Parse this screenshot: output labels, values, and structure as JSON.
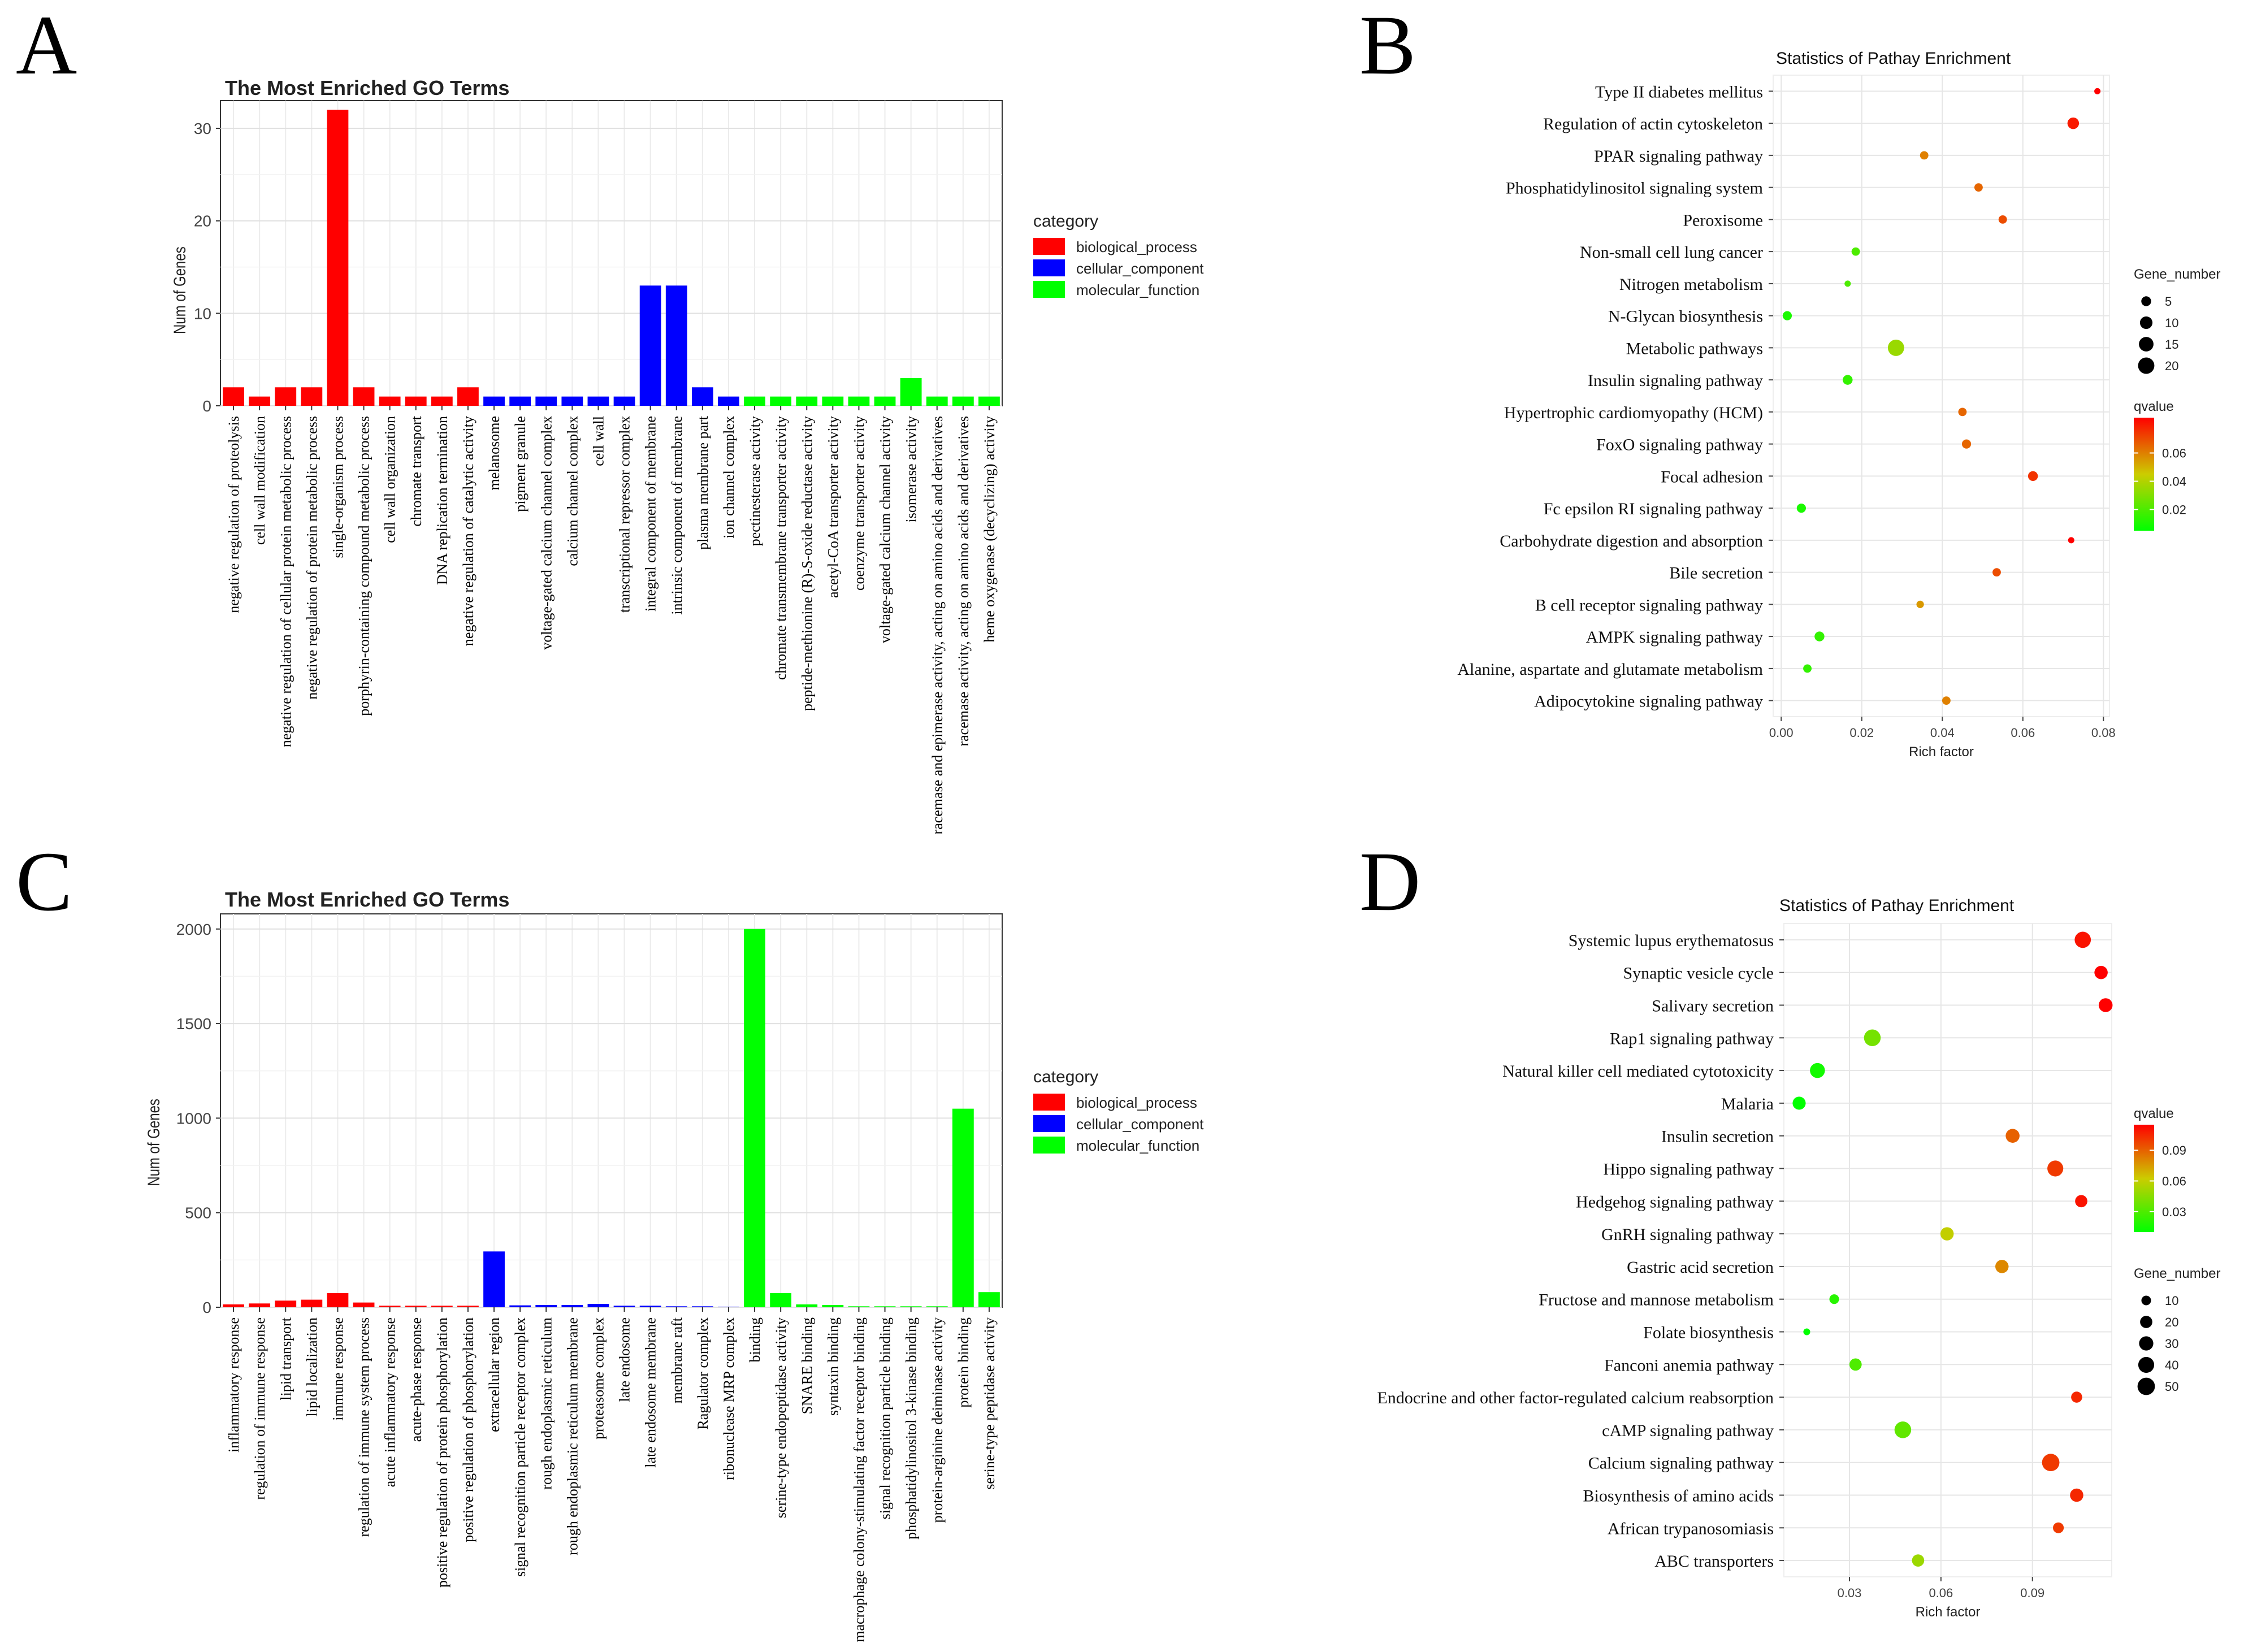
{
  "panels": {
    "A": "A",
    "B": "B",
    "C": "C",
    "D": "D"
  },
  "chart_data": [
    {
      "panel": "A",
      "type": "bar",
      "title": "The Most Enriched GO Terms",
      "xlabel": "",
      "ylabel": "Num of Genes",
      "ylim": [
        0,
        33
      ],
      "yticks": [
        0,
        10,
        20,
        30
      ],
      "grid": true,
      "legend_title": "category",
      "legend_position": "right",
      "legend": [
        {
          "name": "biological_process",
          "color": "#ff0000"
        },
        {
          "name": "cellular_component",
          "color": "#0000ff"
        },
        {
          "name": "molecular_function",
          "color": "#00ff00"
        }
      ],
      "categories": [
        "negative regulation of proteolysis",
        "cell wall modification",
        "negative regulation of cellular protein metabolic process",
        "negative regulation of protein metabolic process",
        "single-organism process",
        "porphyrin-containing compound metabolic process",
        "cell wall organization",
        "chromate transport",
        "DNA replication termination",
        "negative regulation of catalytic activity",
        "melanosome",
        "pigment granule",
        "voltage-gated calcium channel complex",
        "calcium channel complex",
        "cell wall",
        "transcriptional repressor complex",
        "integral component of membrane",
        "intrinsic component of membrane",
        "plasma membrane part",
        "ion channel complex",
        "pectinesterase activity",
        "chromate transmembrane transporter activity",
        "peptide-methionine (R)-S-oxide reductase activity",
        "acetyl-CoA transporter activity",
        "coenzyme transporter activity",
        "voltage-gated calcium channel activity",
        "isomerase activity",
        "racemase and epimerase activity, acting on amino acids and derivatives",
        "racemase activity, acting on amino acids and derivatives",
        "heme oxygenase (decyclizing) activity"
      ],
      "values": [
        2,
        1,
        2,
        2,
        32,
        2,
        1,
        1,
        1,
        2,
        1,
        1,
        1,
        1,
        1,
        1,
        13,
        13,
        2,
        1,
        1,
        1,
        1,
        1,
        1,
        1,
        3,
        1,
        1,
        1
      ],
      "category_of": [
        "biological_process",
        "biological_process",
        "biological_process",
        "biological_process",
        "biological_process",
        "biological_process",
        "biological_process",
        "biological_process",
        "biological_process",
        "biological_process",
        "cellular_component",
        "cellular_component",
        "cellular_component",
        "cellular_component",
        "cellular_component",
        "cellular_component",
        "cellular_component",
        "cellular_component",
        "cellular_component",
        "cellular_component",
        "molecular_function",
        "molecular_function",
        "molecular_function",
        "molecular_function",
        "molecular_function",
        "molecular_function",
        "molecular_function",
        "molecular_function",
        "molecular_function",
        "molecular_function"
      ]
    },
    {
      "panel": "B",
      "type": "scatter",
      "title": "Statistics of Pathay Enrichment",
      "xlabel": "Rich factor",
      "ylabel": "",
      "xlim": [
        -0.002,
        0.0815
      ],
      "xticks": [
        0.0,
        0.02,
        0.04,
        0.06,
        0.08
      ],
      "xtick_labels": [
        "0.00",
        "0.02",
        "0.04",
        "0.06",
        "0.08"
      ],
      "grid": true,
      "size_legend_title": "Gene_number",
      "size_legend": [
        5,
        10,
        15,
        20
      ],
      "size_range": [
        1,
        22
      ],
      "color_legend_title": "qvalue",
      "color_legend_ticks": [
        0.02,
        0.04,
        0.06
      ],
      "color_range": [
        0.005,
        0.085
      ],
      "categories": [
        "Type II diabetes mellitus",
        "Regulation of actin cytoskeleton",
        "PPAR signaling pathway",
        "Phosphatidylinositol signaling system",
        "Peroxisome",
        "Non-small cell lung cancer",
        "Nitrogen metabolism",
        "N-Glycan biosynthesis",
        "Metabolic pathways",
        "Insulin signaling pathway",
        "Hypertrophic cardiomyopathy (HCM)",
        "FoxO signaling pathway",
        "Focal adhesion",
        "Fc epsilon RI signaling pathway",
        "Carbohydrate digestion and absorption",
        "Bile secretion",
        "B cell receptor signaling pathway",
        "AMPK signaling pathway",
        "Alanine, aspartate and glutamate metabolism",
        "Adipocytokine signaling pathway"
      ],
      "x": [
        0.0785,
        0.0725,
        0.0355,
        0.049,
        0.055,
        0.0185,
        0.0165,
        0.0015,
        0.0285,
        0.0165,
        0.045,
        0.046,
        0.0625,
        0.005,
        0.072,
        0.0535,
        0.0345,
        0.0095,
        0.0065,
        0.041
      ],
      "gene_number": [
        1,
        8,
        3,
        3,
        3,
        3,
        1,
        4,
        20,
        5,
        3,
        4,
        5,
        4,
        1,
        3,
        2,
        5,
        3,
        3
      ],
      "qvalue": [
        0.085,
        0.08,
        0.06,
        0.065,
        0.07,
        0.02,
        0.02,
        0.01,
        0.035,
        0.015,
        0.065,
        0.065,
        0.075,
        0.01,
        0.085,
        0.07,
        0.055,
        0.015,
        0.015,
        0.06
      ]
    },
    {
      "panel": "C",
      "type": "bar",
      "title": "The Most Enriched GO Terms",
      "xlabel": "",
      "ylabel": "Num of Genes",
      "ylim": [
        0,
        2080
      ],
      "yticks": [
        0,
        500,
        1000,
        1500,
        2000
      ],
      "grid": true,
      "legend_title": "category",
      "legend_position": "right",
      "legend": [
        {
          "name": "biological_process",
          "color": "#ff0000"
        },
        {
          "name": "cellular_component",
          "color": "#0000ff"
        },
        {
          "name": "molecular_function",
          "color": "#00ff00"
        }
      ],
      "categories": [
        "inflammatory response",
        "regulation of immune response",
        "lipid transport",
        "lipid localization",
        "immune response",
        "regulation of immune system process",
        "acute inflammatory response",
        "acute-phase response",
        "positive regulation of protein phosphorylation",
        "positive regulation of phosphorylation",
        "extracellular region",
        "signal recognition particle receptor complex",
        "rough endoplasmic reticulum",
        "rough endoplasmic reticulum membrane",
        "proteasome complex",
        "late endosome",
        "late endosome membrane",
        "membrane raft",
        "Ragulator complex",
        "ribonuclease MRP complex",
        "binding",
        "serine-type endopeptidase activity",
        "SNARE binding",
        "syntaxin binding",
        "macrophage colony-stimulating factor receptor binding",
        "signal recognition particle binding",
        "phosphatidylinositol 3-kinase binding",
        "protein-arginine deiminase activity",
        "protein binding",
        "serine-type peptidase activity"
      ],
      "values": [
        15,
        20,
        35,
        40,
        75,
        25,
        8,
        8,
        8,
        8,
        295,
        10,
        12,
        12,
        18,
        8,
        8,
        5,
        5,
        3,
        2000,
        75,
        15,
        12,
        5,
        5,
        5,
        5,
        1050,
        80
      ],
      "category_of": [
        "biological_process",
        "biological_process",
        "biological_process",
        "biological_process",
        "biological_process",
        "biological_process",
        "biological_process",
        "biological_process",
        "biological_process",
        "biological_process",
        "cellular_component",
        "cellular_component",
        "cellular_component",
        "cellular_component",
        "cellular_component",
        "cellular_component",
        "cellular_component",
        "cellular_component",
        "cellular_component",
        "cellular_component",
        "molecular_function",
        "molecular_function",
        "molecular_function",
        "molecular_function",
        "molecular_function",
        "molecular_function",
        "molecular_function",
        "molecular_function",
        "molecular_function",
        "molecular_function"
      ]
    },
    {
      "panel": "D",
      "type": "scatter",
      "title": "Statistics of Pathay Enrichment",
      "xlabel": "Rich factor",
      "ylabel": "",
      "xlim": [
        0.0085,
        0.116
      ],
      "xticks": [
        0.03,
        0.06,
        0.09
      ],
      "xtick_labels": [
        "0.03",
        "0.06",
        "0.09"
      ],
      "grid": true,
      "size_legend_title": "Gene_number",
      "size_legend": [
        10,
        20,
        30,
        40,
        50
      ],
      "size_range": [
        1,
        55
      ],
      "color_legend_title": "qvalue",
      "color_legend_ticks": [
        0.03,
        0.06,
        0.09
      ],
      "color_range": [
        0.01,
        0.115
      ],
      "categories": [
        "Systemic lupus erythematosus",
        "Synaptic vesicle cycle",
        "Salivary secretion",
        "Rap1 signaling pathway",
        "Natural killer cell mediated cytotoxicity",
        "Malaria",
        "Insulin secretion",
        "Hippo signaling pathway",
        "Hedgehog signaling pathway",
        "GnRH signaling pathway",
        "Gastric acid secretion",
        "Fructose and mannose metabolism",
        "Folate biosynthesis",
        "Fanconi anemia pathway",
        "Endocrine and other factor-regulated calcium reabsorption",
        "cAMP signaling pathway",
        "Calcium signaling pathway",
        "Biosynthesis of amino acids",
        "African trypanosomiasis",
        "ABC transporters"
      ],
      "x": [
        0.1065,
        0.1125,
        0.114,
        0.0375,
        0.0195,
        0.0135,
        0.0835,
        0.0975,
        0.106,
        0.062,
        0.08,
        0.025,
        0.016,
        0.032,
        0.1045,
        0.0475,
        0.096,
        0.1045,
        0.0985,
        0.0525
      ],
      "gene_number": [
        42,
        25,
        28,
        45,
        34,
        24,
        28,
        40,
        20,
        25,
        25,
        10,
        3,
        20,
        15,
        45,
        50,
        25,
        14,
        20
      ],
      "qvalue": [
        0.11,
        0.115,
        0.115,
        0.04,
        0.015,
        0.01,
        0.09,
        0.1,
        0.11,
        0.06,
        0.08,
        0.02,
        0.01,
        0.03,
        0.105,
        0.035,
        0.1,
        0.105,
        0.1,
        0.05
      ]
    }
  ]
}
